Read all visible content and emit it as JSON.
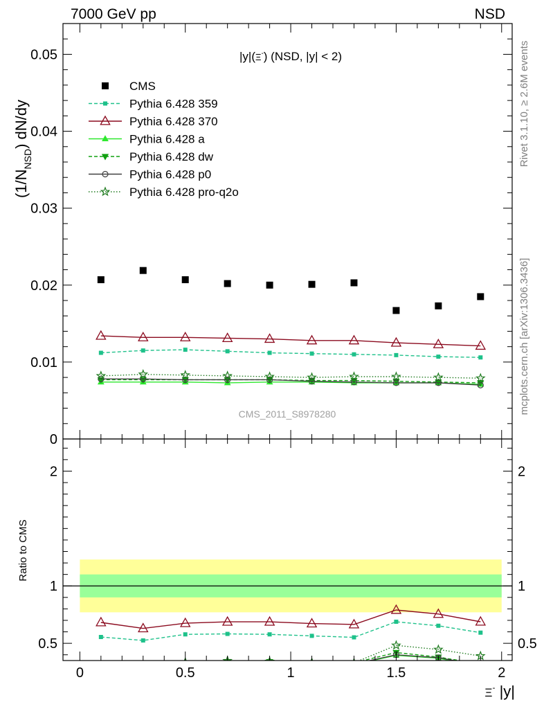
{
  "header": {
    "left": "7000 GeV pp",
    "right": "NSD"
  },
  "side_labels": {
    "rivet": "Rivet 3.1.10, ≥ 2.6M events",
    "mcplots": "mcplots.cern.ch [arXiv:1306.3436]"
  },
  "colors": {
    "cms": "#000000",
    "p359": "#1ec18a",
    "p370": "#8b0a1e",
    "pa": "#2ee82e",
    "pdw": "#11a011",
    "pp0": "#404040",
    "pq2o": "#1e7a1e",
    "band_inner": "#99ff99",
    "band_outer": "#ffff99"
  },
  "chart_data": [
    {
      "type": "scatter",
      "title": "|y|(Ξ⁻) (NSD, |y| < 2)",
      "title_parts": {
        "a": "|y|(",
        "sym": "Ξ",
        "sup": "-",
        "b": ") (NSD, |y| < 2)"
      },
      "ylabel": "(1/N_NSD) dN/dy",
      "ylabel_parts": {
        "a": "(1/N",
        "sub": "NSD",
        "b": ") dN/dy"
      },
      "watermark": "CMS_2011_S8978280",
      "xlim": [
        -0.08,
        2.05
      ],
      "ylim": [
        0,
        0.054
      ],
      "yticks": [
        0,
        0.01,
        0.02,
        0.03,
        0.04,
        0.05
      ],
      "ytick_labels": [
        "0",
        "0.01",
        "0.02",
        "0.03",
        "0.04",
        "0.05"
      ],
      "x": [
        0.1,
        0.3,
        0.5,
        0.7,
        0.9,
        1.1,
        1.3,
        1.5,
        1.7,
        1.9
      ],
      "series": [
        {
          "name": "CMS",
          "key": "cms",
          "values": [
            0.0207,
            0.0219,
            0.0207,
            0.0202,
            0.02,
            0.0201,
            0.0203,
            0.0167,
            0.0173,
            0.0185
          ]
        },
        {
          "name": "Pythia 6.428 359",
          "key": "p359",
          "values": [
            0.0112,
            0.0115,
            0.0116,
            0.0114,
            0.0112,
            0.0111,
            0.011,
            0.0109,
            0.0107,
            0.0106
          ]
        },
        {
          "name": "Pythia 6.428 370",
          "key": "p370",
          "values": [
            0.0134,
            0.0132,
            0.0132,
            0.0131,
            0.013,
            0.0128,
            0.0128,
            0.0125,
            0.0123,
            0.0121
          ]
        },
        {
          "name": "Pythia 6.428 a",
          "key": "pa",
          "values": [
            0.0074,
            0.0074,
            0.0074,
            0.0073,
            0.0074,
            0.0074,
            0.0073,
            0.0073,
            0.0073,
            0.0071
          ]
        },
        {
          "name": "Pythia 6.428 dw",
          "key": "pdw",
          "values": [
            0.0077,
            0.0077,
            0.0077,
            0.0077,
            0.0077,
            0.0076,
            0.0076,
            0.0075,
            0.0074,
            0.0073
          ]
        },
        {
          "name": "Pythia 6.428 p0",
          "key": "pp0",
          "values": [
            0.0078,
            0.0078,
            0.0077,
            0.0077,
            0.0077,
            0.0075,
            0.0074,
            0.0073,
            0.0073,
            0.007
          ]
        },
        {
          "name": "Pythia 6.428 pro-q2o",
          "key": "pq2o",
          "values": [
            0.0082,
            0.0084,
            0.0083,
            0.0082,
            0.0081,
            0.008,
            0.0081,
            0.0081,
            0.008,
            0.0079
          ]
        }
      ]
    },
    {
      "type": "line",
      "ylabel": "Ratio to CMS",
      "xlabel": "Ξ⁻ |y|",
      "xlabel_parts": {
        "sym": "Ξ",
        "sup": "-",
        "b": " |y|"
      },
      "xlim": [
        -0.08,
        2.05
      ],
      "ylim": [
        0.35,
        2.28
      ],
      "xticks": [
        0,
        0.5,
        1,
        1.5,
        2
      ],
      "xtick_labels": [
        "0",
        "0.5",
        "1",
        "1.5",
        "2"
      ],
      "yticks": [
        0.5,
        1,
        2
      ],
      "ytick_labels": [
        "0.5",
        "1",
        "2"
      ],
      "band_inner": [
        0.9,
        1.1
      ],
      "band_outer": [
        0.77,
        1.23
      ],
      "x": [
        0.1,
        0.3,
        0.5,
        0.7,
        0.9,
        1.1,
        1.3,
        1.5,
        1.7,
        1.9
      ],
      "series": [
        {
          "name": "Pythia 6.428 359",
          "key": "p359",
          "values": [
            0.555,
            0.525,
            0.578,
            0.582,
            0.578,
            0.565,
            0.552,
            0.688,
            0.653,
            0.593
          ]
        },
        {
          "name": "Pythia 6.428 370",
          "key": "p370",
          "values": [
            0.682,
            0.63,
            0.675,
            0.687,
            0.687,
            0.672,
            0.664,
            0.79,
            0.755,
            0.688
          ]
        },
        {
          "name": "Pythia 6.428 a",
          "key": "pa",
          "values": [
            0.3,
            0.3,
            0.3,
            0.31,
            0.315,
            0.31,
            0.315,
            0.395,
            0.37,
            0.3
          ]
        },
        {
          "name": "Pythia 6.428 dw",
          "key": "pdw",
          "values": [
            0.3,
            0.3,
            0.33,
            0.34,
            0.34,
            0.33,
            0.33,
            0.42,
            0.38,
            0.32
          ]
        },
        {
          "name": "Pythia 6.428 p0",
          "key": "pp0",
          "values": [
            0.3,
            0.3,
            0.31,
            0.32,
            0.32,
            0.315,
            0.32,
            0.4,
            0.375,
            0.31
          ]
        },
        {
          "name": "Pythia 6.428 pro-q2o",
          "key": "pq2o",
          "values": [
            0.3,
            0.31,
            0.335,
            0.348,
            0.342,
            0.333,
            0.33,
            0.482,
            0.446,
            0.39
          ]
        }
      ]
    }
  ]
}
